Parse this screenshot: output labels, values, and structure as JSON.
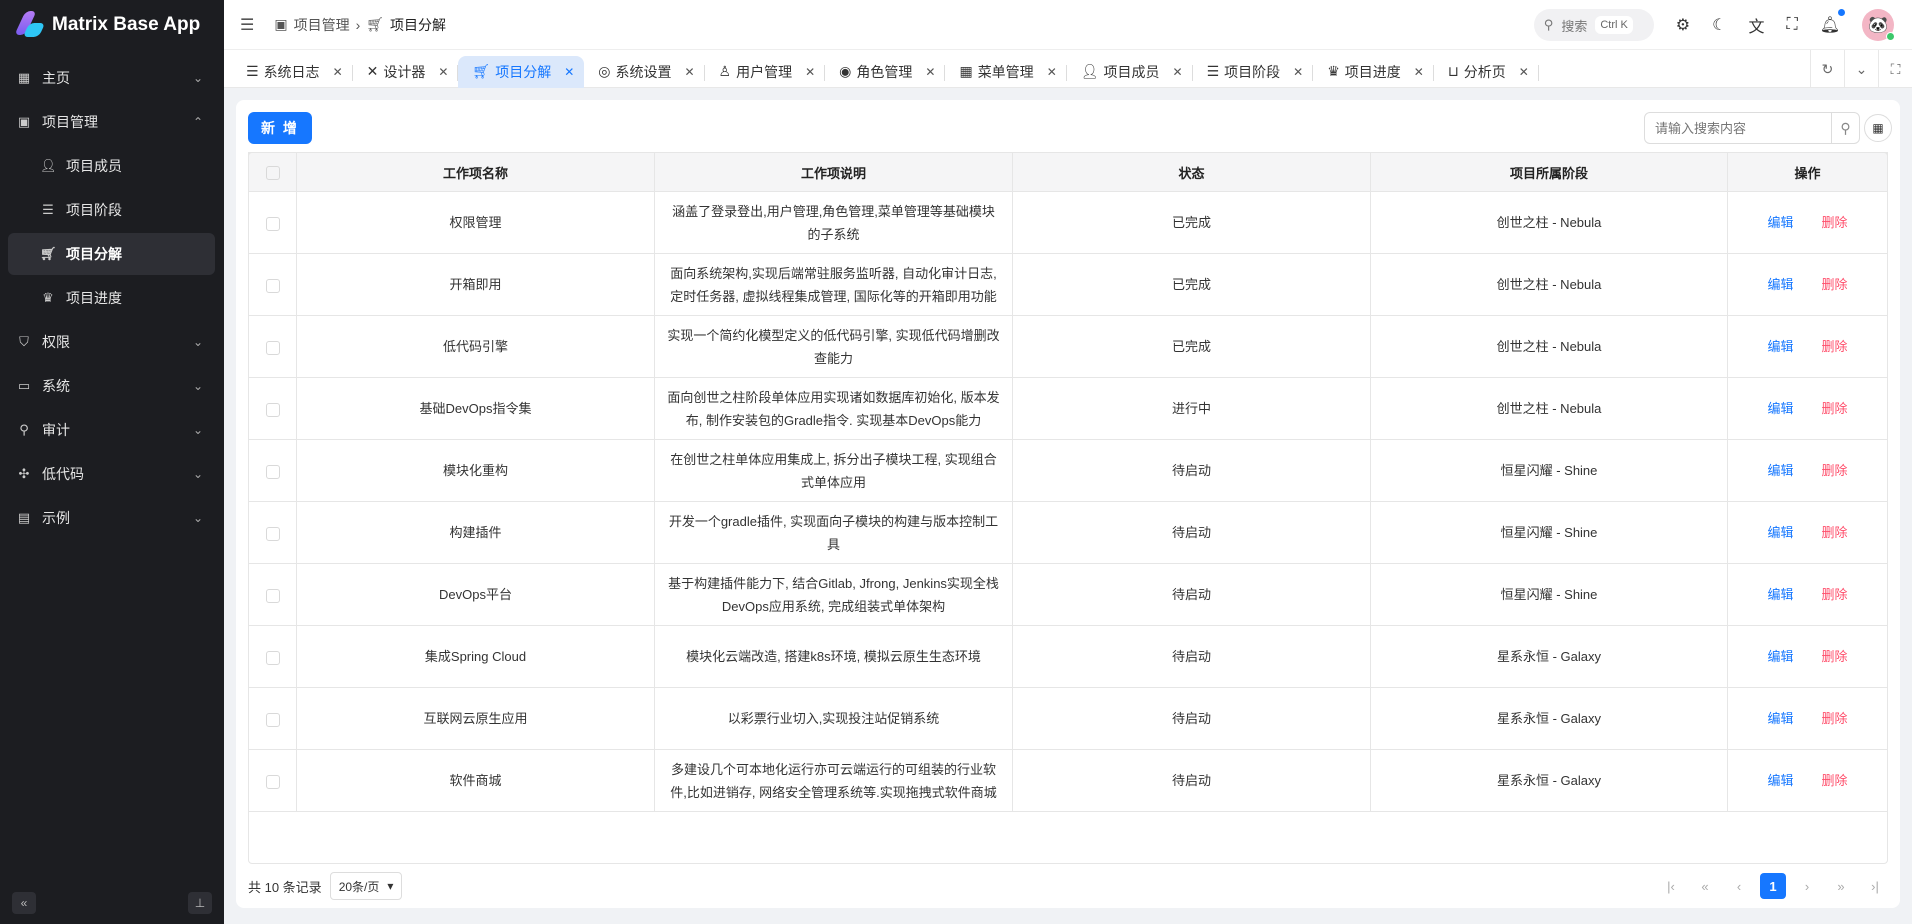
{
  "app": {
    "title": "Matrix Base App"
  },
  "sidebar": {
    "items": [
      {
        "label": "主页",
        "icon": "grid-icon",
        "chevron": "⌄"
      },
      {
        "label": "项目管理",
        "icon": "project-icon",
        "chevron": "⌃"
      },
      {
        "label": "项目成员",
        "icon": "user-add-icon"
      },
      {
        "label": "项目阶段",
        "icon": "list-icon"
      },
      {
        "label": "项目分解",
        "icon": "cart-icon",
        "active": true
      },
      {
        "label": "项目进度",
        "icon": "crown-icon"
      },
      {
        "label": "权限",
        "icon": "shield-icon",
        "chevron": "⌄"
      },
      {
        "label": "系统",
        "icon": "monitor-icon",
        "chevron": "⌄"
      },
      {
        "label": "审计",
        "icon": "audit-icon",
        "chevron": "⌄"
      },
      {
        "label": "低代码",
        "icon": "lowcode-icon",
        "chevron": "⌄"
      },
      {
        "label": "示例",
        "icon": "example-icon",
        "chevron": "⌄"
      }
    ]
  },
  "header": {
    "breadcrumb": [
      "项目管理",
      "项目分解"
    ],
    "search_label": "搜索",
    "search_kbd": "Ctrl K"
  },
  "tabs": [
    {
      "label": "系统日志",
      "icon": "log-icon"
    },
    {
      "label": "设计器",
      "icon": "tools-icon"
    },
    {
      "label": "项目分解",
      "icon": "cart-icon",
      "active": true
    },
    {
      "label": "系统设置",
      "icon": "settings-icon"
    },
    {
      "label": "用户管理",
      "icon": "user-icon"
    },
    {
      "label": "角色管理",
      "icon": "role-icon"
    },
    {
      "label": "菜单管理",
      "icon": "menu-icon"
    },
    {
      "label": "项目成员",
      "icon": "user-add-icon"
    },
    {
      "label": "项目阶段",
      "icon": "list-icon"
    },
    {
      "label": "项目进度",
      "icon": "crown-icon"
    },
    {
      "label": "分析页",
      "icon": "chart-icon"
    }
  ],
  "toolbar": {
    "new_label": "新 增",
    "search_placeholder": "请输入搜索内容"
  },
  "table": {
    "columns": [
      "工作项名称",
      "工作项说明",
      "状态",
      "项目所属阶段",
      "操作"
    ],
    "edit_label": "编辑",
    "delete_label": "删除",
    "rows": [
      {
        "name": "权限管理",
        "desc": "涵盖了登录登出,用户管理,角色管理,菜单管理等基础模块的子系统",
        "status": "已完成",
        "stage": "创世之柱 - Nebula"
      },
      {
        "name": "开箱即用",
        "desc": "面向系统架构,实现后端常驻服务监听器, 自动化审计日志, 定时任务器, 虚拟线程集成管理, 国际化等的开箱即用功能",
        "status": "已完成",
        "stage": "创世之柱 - Nebula"
      },
      {
        "name": "低代码引擎",
        "desc": "实现一个简约化模型定义的低代码引擎, 实现低代码增删改查能力",
        "status": "已完成",
        "stage": "创世之柱 - Nebula"
      },
      {
        "name": "基础DevOps指令集",
        "desc": "面向创世之柱阶段单体应用实现诸如数据库初始化, 版本发布, 制作安装包的Gradle指令. 实现基本DevOps能力",
        "status": "进行中",
        "stage": "创世之柱 - Nebula"
      },
      {
        "name": "模块化重构",
        "desc": "在创世之柱单体应用集成上, 拆分出子模块工程, 实现组合式单体应用",
        "status": "待启动",
        "stage": "恒星闪耀 - Shine"
      },
      {
        "name": "构建插件",
        "desc": "开发一个gradle插件, 实现面向子模块的构建与版本控制工具",
        "status": "待启动",
        "stage": "恒星闪耀 - Shine"
      },
      {
        "name": "DevOps平台",
        "desc": "基于构建插件能力下, 结合Gitlab, Jfrong, Jenkins实现全栈DevOps应用系统, 完成组装式单体架构",
        "status": "待启动",
        "stage": "恒星闪耀 - Shine"
      },
      {
        "name": "集成Spring Cloud",
        "desc": "模块化云端改造, 搭建k8s环境, 模拟云原生生态环境",
        "status": "待启动",
        "stage": "星系永恒 - Galaxy"
      },
      {
        "name": "互联网云原生应用",
        "desc": "以彩票行业切入,实现投注站促销系统",
        "status": "待启动",
        "stage": "星系永恒 - Galaxy"
      },
      {
        "name": "软件商城",
        "desc": "多建设几个可本地化运行亦可云端运行的可组装的行业软件,比如进销存, 网络安全管理系统等.实现拖拽式软件商城",
        "status": "待启动",
        "stage": "星系永恒 - Galaxy"
      }
    ]
  },
  "pagination": {
    "total_label": "共 10 条记录",
    "page_size": "20条/页",
    "current_page": "1"
  },
  "colors": {
    "accent": "#1677ff",
    "danger": "#ff4d6a",
    "sidebar_bg": "#1c1d21"
  }
}
